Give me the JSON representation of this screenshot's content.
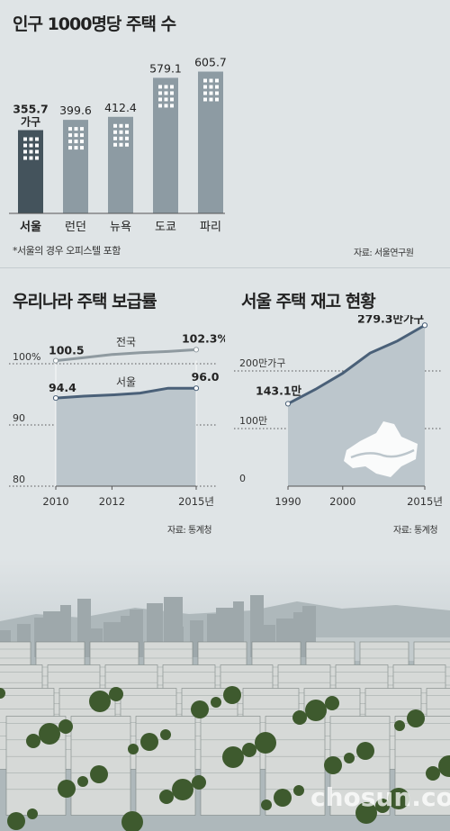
{
  "chart_data": [
    {
      "type": "bar",
      "title": "인구 1000명당 주택 수",
      "categories": [
        "서울",
        "런던",
        "뉴욕",
        "도쿄",
        "파리"
      ],
      "values": [
        355.7,
        399.6,
        412.4,
        579.1,
        605.7
      ],
      "value_labels": [
        "355.7",
        "399.6",
        "412.4",
        "579.1",
        "605.7"
      ],
      "first_value_unit": "가구",
      "highlight_category": "서울",
      "colors": {
        "highlight": "#44535c",
        "normal": "#8d9ba3",
        "window": "#ffffff"
      },
      "footnote": "*서울의 경우 오피스텔 포함",
      "source": "자료: 서울연구원"
    },
    {
      "type": "line",
      "title": "우리나라 주택 보급률",
      "x": [
        2010,
        2011,
        2012,
        2013,
        2014,
        2015
      ],
      "x_tick_labels": [
        "2010",
        "2012",
        "2015년"
      ],
      "x_ticks": [
        2010,
        2012,
        2015
      ],
      "y_tick_labels": [
        "100%",
        "90",
        "80"
      ],
      "y_ticks": [
        100,
        90,
        80
      ],
      "ylim": [
        80,
        103.5
      ],
      "grid": "dotted",
      "series": [
        {
          "name": "전국",
          "values": [
            100.5,
            101.0,
            101.5,
            101.8,
            102.0,
            102.3
          ],
          "start_label": "100.5",
          "end_label": "102.3%",
          "color": "#8f9aa0"
        },
        {
          "name": "서울",
          "values": [
            94.4,
            94.7,
            94.9,
            95.2,
            96.0,
            96.0
          ],
          "start_label": "94.4",
          "end_label": "96.0",
          "color": "#4a6078",
          "fill": "#bcc6cc"
        }
      ],
      "source": "자료: 통계청"
    },
    {
      "type": "area",
      "title": "서울 주택 재고 현황",
      "x": [
        1990,
        1995,
        2000,
        2005,
        2010,
        2015
      ],
      "values": [
        143.1,
        168,
        196,
        231,
        252,
        279.3
      ],
      "start_label": "143.1만",
      "end_label": "279.3만가구",
      "x_tick_labels": [
        "1990",
        "2000",
        "2015년"
      ],
      "x_ticks": [
        1990,
        2000,
        2015
      ],
      "y_tick_labels": [
        "200만가구",
        "100만",
        "0"
      ],
      "y_ticks": [
        200,
        100,
        0
      ],
      "ylim": [
        0,
        290
      ],
      "grid": "dotted",
      "colors": {
        "line": "#4a6078",
        "fill": "#bcc6cc",
        "map": "#ffffff"
      },
      "source": "자료: 통계청"
    }
  ],
  "watermark": "chosun.com"
}
